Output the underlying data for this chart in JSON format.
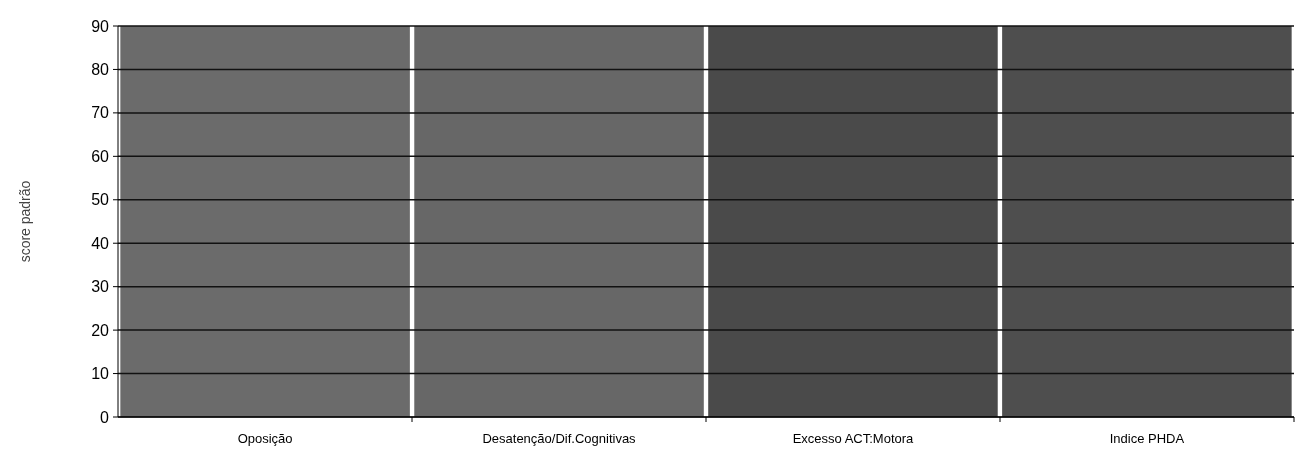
{
  "chart_data": {
    "type": "bar",
    "ylabel": "score padrão",
    "categories": [
      "Oposição",
      "Desatenção/Dif.Cognitivas",
      "Excesso ACT:Motora",
      "Indice PHDA"
    ],
    "values": [
      90,
      90,
      90,
      90
    ],
    "colors": [
      "#6b6b6b",
      "#676767",
      "#4a4a4a",
      "#4e4e4e"
    ],
    "ylim": [
      0,
      90
    ],
    "yticks": [
      0,
      10,
      20,
      30,
      40,
      50,
      60,
      70,
      80,
      90
    ],
    "grid": "y"
  }
}
